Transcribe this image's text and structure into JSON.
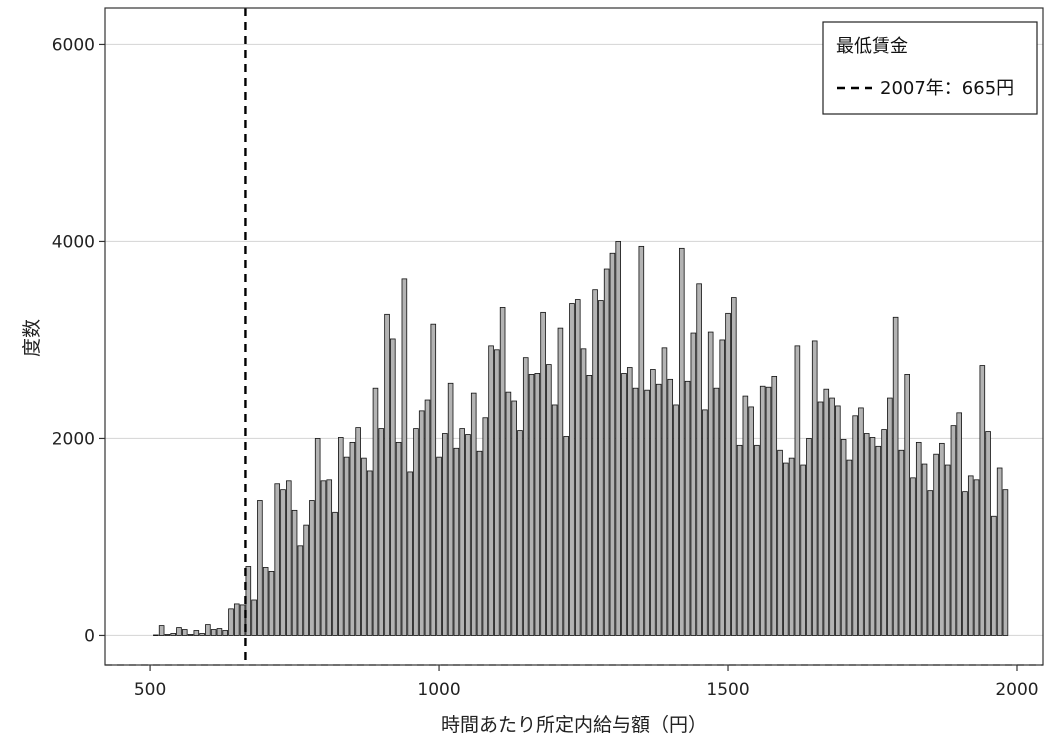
{
  "chart_data": {
    "type": "bar",
    "title": "",
    "xlabel": "時間あたり所定内給与額（円）",
    "ylabel": "度数",
    "xlim": [
      422,
      2045
    ],
    "ylim": [
      -300,
      6370
    ],
    "x_ticks": [
      500,
      1000,
      1500,
      2000
    ],
    "y_ticks": [
      0,
      2000,
      4000,
      6000
    ],
    "x_tick_labels": [
      "500",
      "1000",
      "1500",
      "2000"
    ],
    "y_tick_labels": [
      "0",
      "2000",
      "4000",
      "6000"
    ],
    "grid": true,
    "bin_start": 505,
    "bin_width": 10,
    "bar_color": "#b3b3b3",
    "bar_edge_color": "#111111",
    "values": [
      5,
      100,
      10,
      20,
      80,
      60,
      10,
      50,
      20,
      110,
      60,
      70,
      50,
      270,
      320,
      310,
      700,
      360,
      1370,
      690,
      650,
      1540,
      1480,
      1570,
      1270,
      910,
      1120,
      1370,
      2000,
      1570,
      1580,
      1250,
      2010,
      1810,
      1960,
      2110,
      1800,
      1670,
      2510,
      2100,
      3260,
      3010,
      1960,
      3620,
      1660,
      2100,
      2280,
      2390,
      3160,
      1810,
      2050,
      2560,
      1900,
      2100,
      2040,
      2460,
      1870,
      2210,
      2940,
      2900,
      3330,
      2470,
      2380,
      2080,
      2820,
      2650,
      2660,
      3280,
      2750,
      2340,
      3120,
      2020,
      3370,
      3410,
      2910,
      2640,
      3510,
      3400,
      3720,
      3880,
      4000,
      2660,
      2720,
      2510,
      3950,
      2490,
      2700,
      2550,
      2920,
      2600,
      2340,
      3930,
      2580,
      3070,
      3570,
      2290,
      3080,
      2510,
      3000,
      3270,
      3430,
      1930,
      2430,
      2320,
      1930,
      2530,
      2520,
      2630,
      1880,
      1750,
      1800,
      2940,
      1730,
      2000,
      2990,
      2370,
      2500,
      2410,
      2330,
      1990,
      1780,
      2230,
      2310,
      2050,
      2010,
      1920,
      2090,
      2410,
      3230,
      1880,
      2650,
      1600,
      1960,
      1740,
      1470,
      1840,
      1950,
      1730,
      2130,
      2260,
      1460,
      1620,
      1580,
      2740,
      2070,
      1210,
      1700,
      1480
    ],
    "reference_line": {
      "x": 665,
      "style": "dashed",
      "color": "#000000"
    },
    "legend": {
      "title": "最低賃金",
      "entries": [
        {
          "label": "2007年：665円",
          "style": "dashed"
        }
      ],
      "placement": "top-right"
    }
  }
}
